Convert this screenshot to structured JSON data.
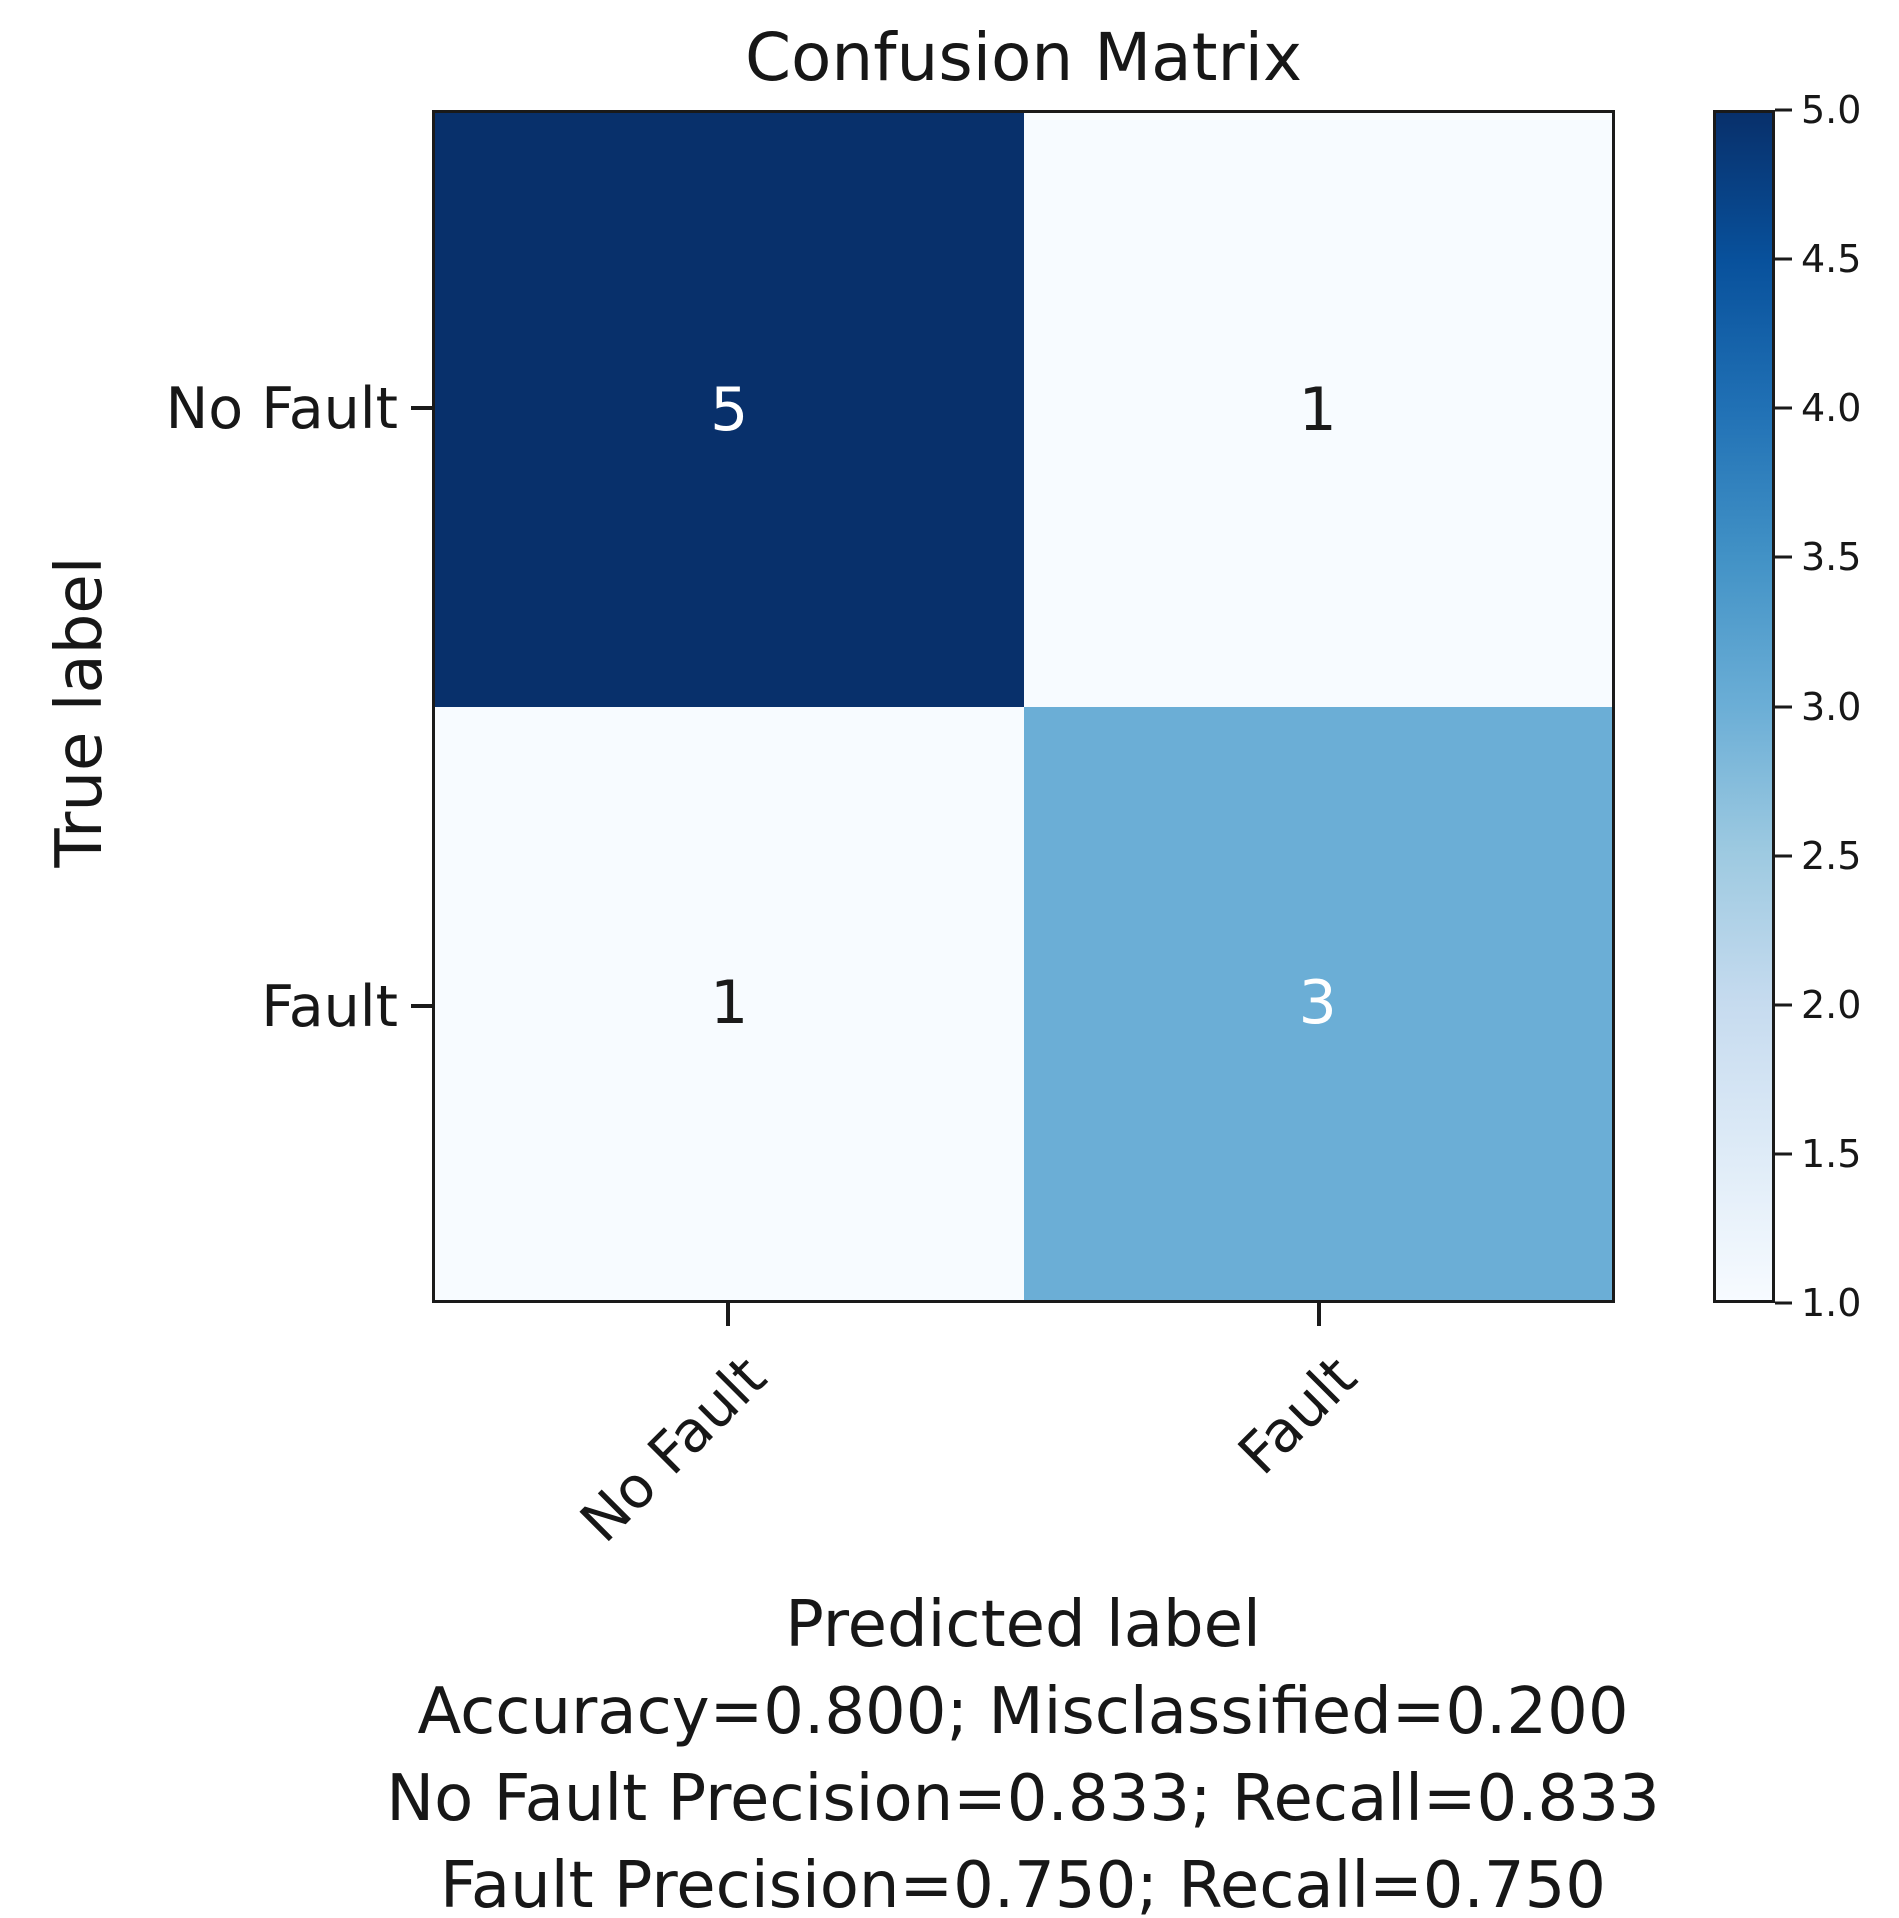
{
  "chart_data": {
    "type": "heatmap",
    "title": "Confusion Matrix",
    "xlabel": "Predicted label",
    "ylabel": "True label",
    "x_tick_labels": [
      "No Fault",
      "Fault"
    ],
    "y_tick_labels": [
      "No Fault",
      "Fault"
    ],
    "matrix": [
      [
        5,
        1
      ],
      [
        1,
        3
      ]
    ],
    "cell_colors": [
      [
        "#08306b",
        "#f7fbff"
      ],
      [
        "#f7fbff",
        "#6baed6"
      ]
    ],
    "cell_text_colors": [
      [
        "#ffffff",
        "#1a1a1a"
      ],
      [
        "#1a1a1a",
        "#ffffff"
      ]
    ],
    "colormap": "Blues",
    "colorbar": {
      "min": 1.0,
      "max": 5.0,
      "tick_labels": [
        "5.0",
        "4.5",
        "4.0",
        "3.5",
        "3.0",
        "2.5",
        "2.0",
        "1.5",
        "1.0"
      ],
      "gradient_stops": [
        "#08306b",
        "#08519c",
        "#2171b5",
        "#4292c6",
        "#6baed6",
        "#9ecae1",
        "#c6dbef",
        "#deebf7",
        "#f7fbff"
      ]
    },
    "annotations": [
      "Accuracy=0.800; Misclassified=0.200",
      "No Fault Precision=0.833; Recall=0.833",
      "Fault Precision=0.750; Recall=0.750"
    ],
    "layout": {
      "legend": "colorbar-right",
      "grid": false,
      "x_tick_rotation_deg": 45
    },
    "colors": {
      "background": "#ffffff",
      "text": "#171717",
      "spine": "#1a1a1a"
    }
  }
}
